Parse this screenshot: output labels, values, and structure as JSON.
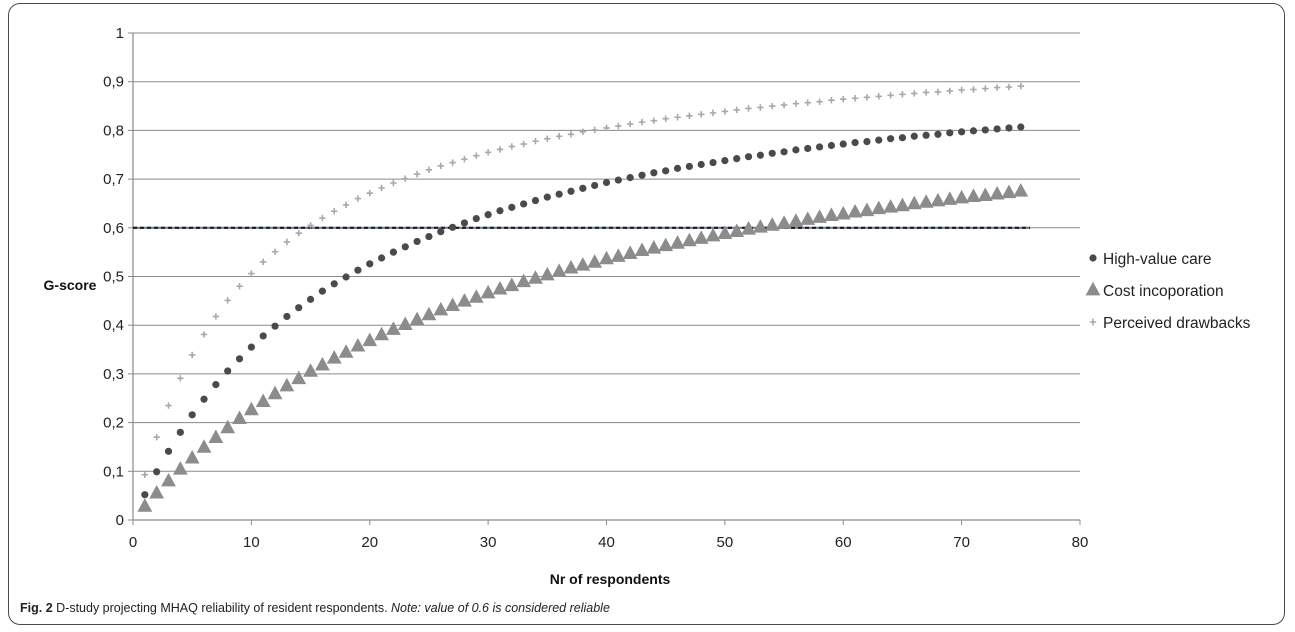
{
  "figure": {
    "label": "Fig. 2",
    "caption": "D-study projecting MHAQ reliability of resident respondents.",
    "note": "Note: value of 0.6 is considered reliable"
  },
  "chart_data": {
    "type": "scatter",
    "title": "",
    "xlabel": "Nr of respondents",
    "ylabel": "G-score",
    "xlim": [
      0,
      80
    ],
    "ylim": [
      0,
      1
    ],
    "x_ticks": [
      "0",
      "10",
      "20",
      "30",
      "40",
      "50",
      "60",
      "70",
      "80"
    ],
    "y_ticks": [
      "0",
      "0,1",
      "0,2",
      "0,3",
      "0,4",
      "0,5",
      "0,6",
      "0,7",
      "0,8",
      "0,9",
      "1"
    ],
    "grid": "horizontal",
    "legend_position": "right",
    "reference_line": {
      "y": 0.6,
      "style": "dashed"
    },
    "x": [
      1,
      2,
      3,
      4,
      5,
      6,
      7,
      8,
      9,
      10,
      11,
      12,
      13,
      14,
      15,
      16,
      17,
      18,
      19,
      20,
      21,
      22,
      23,
      24,
      25,
      26,
      27,
      28,
      29,
      30,
      31,
      32,
      33,
      34,
      35,
      36,
      37,
      38,
      39,
      40,
      41,
      42,
      43,
      44,
      45,
      46,
      47,
      48,
      49,
      50,
      51,
      52,
      53,
      54,
      55,
      56,
      57,
      58,
      59,
      60,
      61,
      62,
      63,
      64,
      65,
      66,
      67,
      68,
      69,
      70,
      71,
      72,
      73,
      74,
      75
    ],
    "series": [
      {
        "name": "High-value care",
        "marker": "circle",
        "color": "#4a4a4a",
        "values": [
          0.052,
          0.099,
          0.141,
          0.18,
          0.216,
          0.248,
          0.278,
          0.306,
          0.331,
          0.355,
          0.378,
          0.398,
          0.418,
          0.436,
          0.453,
          0.47,
          0.485,
          0.499,
          0.513,
          0.526,
          0.538,
          0.55,
          0.561,
          0.572,
          0.582,
          0.592,
          0.601,
          0.61,
          0.619,
          0.627,
          0.635,
          0.642,
          0.649,
          0.656,
          0.663,
          0.669,
          0.675,
          0.681,
          0.687,
          0.693,
          0.698,
          0.703,
          0.708,
          0.713,
          0.717,
          0.722,
          0.726,
          0.73,
          0.734,
          0.738,
          0.742,
          0.746,
          0.749,
          0.753,
          0.756,
          0.76,
          0.763,
          0.766,
          0.769,
          0.772,
          0.775,
          0.777,
          0.78,
          0.783,
          0.785,
          0.788,
          0.79,
          0.792,
          0.795,
          0.797,
          0.799,
          0.801,
          0.803,
          0.805,
          0.807
        ]
      },
      {
        "name": "Cost incoporation",
        "marker": "triangle",
        "color": "#8c8c8c",
        "values": [
          0.028,
          0.055,
          0.08,
          0.104,
          0.127,
          0.149,
          0.169,
          0.189,
          0.208,
          0.226,
          0.243,
          0.259,
          0.275,
          0.29,
          0.305,
          0.318,
          0.332,
          0.344,
          0.357,
          0.368,
          0.38,
          0.391,
          0.401,
          0.411,
          0.421,
          0.431,
          0.44,
          0.449,
          0.457,
          0.466,
          0.474,
          0.481,
          0.489,
          0.496,
          0.503,
          0.51,
          0.517,
          0.523,
          0.529,
          0.536,
          0.541,
          0.547,
          0.553,
          0.558,
          0.563,
          0.568,
          0.573,
          0.578,
          0.583,
          0.588,
          0.592,
          0.597,
          0.601,
          0.605,
          0.609,
          0.613,
          0.617,
          0.621,
          0.625,
          0.628,
          0.632,
          0.635,
          0.639,
          0.642,
          0.645,
          0.649,
          0.652,
          0.655,
          0.658,
          0.661,
          0.664,
          0.666,
          0.669,
          0.672,
          0.675
        ]
      },
      {
        "name": "Perceived drawbacks",
        "marker": "plus",
        "color": "#a8a8a8",
        "values": [
          0.093,
          0.17,
          0.235,
          0.291,
          0.339,
          0.381,
          0.418,
          0.451,
          0.48,
          0.506,
          0.53,
          0.551,
          0.571,
          0.589,
          0.605,
          0.62,
          0.634,
          0.647,
          0.66,
          0.671,
          0.682,
          0.692,
          0.701,
          0.71,
          0.719,
          0.727,
          0.734,
          0.741,
          0.748,
          0.755,
          0.761,
          0.767,
          0.772,
          0.778,
          0.783,
          0.788,
          0.792,
          0.797,
          0.801,
          0.805,
          0.809,
          0.813,
          0.817,
          0.82,
          0.824,
          0.827,
          0.83,
          0.833,
          0.836,
          0.839,
          0.842,
          0.845,
          0.847,
          0.85,
          0.852,
          0.855,
          0.857,
          0.859,
          0.862,
          0.864,
          0.866,
          0.868,
          0.87,
          0.872,
          0.874,
          0.876,
          0.878,
          0.879,
          0.881,
          0.883,
          0.884,
          0.886,
          0.888,
          0.889,
          0.891
        ]
      }
    ]
  }
}
